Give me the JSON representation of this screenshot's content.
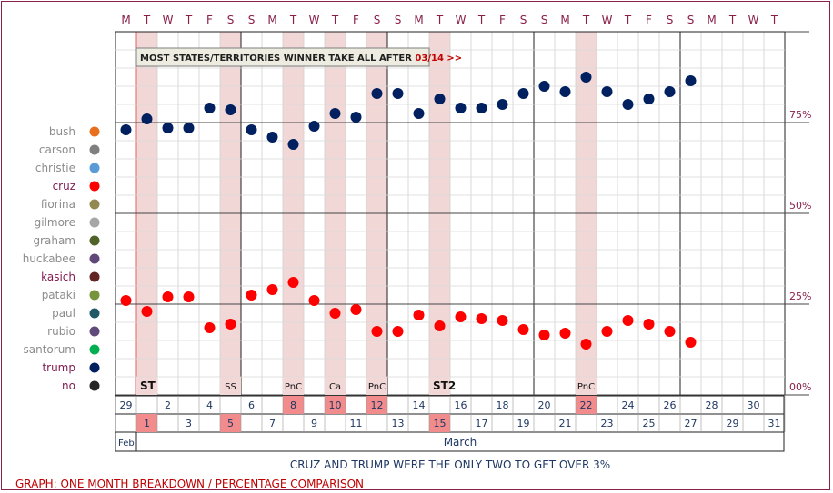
{
  "chart_data": {
    "type": "scatter",
    "title": "GRAPH: ONE MONTH BREAKDOWN / PERCENTAGE COMPARISON",
    "subtitle": "CRUZ AND TRUMP WERE THE ONLY TWO TO GET OVER 3%",
    "annotation": "MOST STATES/TERRITORIES WINNER TAKE ALL AFTER",
    "annotation_date": "03/14 >>",
    "weekday_header": [
      "M",
      "T",
      "W",
      "T",
      "F",
      "S",
      "S",
      "M",
      "T",
      "W",
      "T",
      "F",
      "S",
      "S",
      "M",
      "T",
      "W",
      "T",
      "F",
      "S",
      "S",
      "M",
      "T",
      "W",
      "T",
      "F",
      "S",
      "S",
      "M",
      "T",
      "W",
      "T"
    ],
    "y_ticks": [
      {
        "label": "75%",
        "value": 75
      },
      {
        "label": "50%",
        "value": 50
      },
      {
        "label": "25%",
        "value": 25
      },
      {
        "label": "00%",
        "value": 0
      }
    ],
    "ylim": [
      0,
      100
    ],
    "grid": true,
    "legend_position": "left",
    "x": [
      "Feb 29",
      "Mar 1",
      "Mar 2",
      "Mar 3",
      "Mar 4",
      "Mar 5",
      "Mar 6",
      "Mar 7",
      "Mar 8",
      "Mar 9",
      "Mar 10",
      "Mar 11",
      "Mar 12",
      "Mar 13",
      "Mar 14",
      "Mar 15",
      "Mar 16",
      "Mar 17",
      "Mar 18",
      "Mar 19",
      "Mar 20",
      "Mar 21",
      "Mar 22",
      "Mar 23",
      "Mar 24",
      "Mar 25",
      "Mar 26",
      "Mar 27",
      "Mar 28",
      "Mar 29",
      "Mar 30",
      "Mar 31"
    ],
    "highlight_days": [
      1,
      5,
      8,
      10,
      12,
      15,
      22
    ],
    "event_labels": [
      {
        "day": 1,
        "label": "ST",
        "bold": true
      },
      {
        "day": 5,
        "label": "SS",
        "bold": false
      },
      {
        "day": 8,
        "label": "PnC",
        "bold": false
      },
      {
        "day": 10,
        "label": "Ca",
        "bold": false
      },
      {
        "day": 12,
        "label": "PnC",
        "bold": false
      },
      {
        "day": 15,
        "label": "ST2",
        "bold": true
      },
      {
        "day": 22,
        "label": "PnC",
        "bold": false
      }
    ],
    "date_row_top": [
      "29",
      "2",
      "4",
      "6",
      "8",
      "10",
      "12",
      "14",
      "16",
      "18",
      "20",
      "22",
      "24",
      "26",
      "28",
      "30"
    ],
    "date_row_bottom": [
      "1",
      "3",
      "5",
      "7",
      "9",
      "11",
      "13",
      "15",
      "17",
      "19",
      "21",
      "23",
      "25",
      "27",
      "29",
      "31"
    ],
    "month_labels": [
      {
        "label": "Feb",
        "start": 0,
        "end": 0
      },
      {
        "label": "March",
        "start": 1,
        "end": 31
      }
    ],
    "legend": [
      {
        "name": "bush",
        "color": "#E86F1C",
        "emphasis": false
      },
      {
        "name": "carson",
        "color": "#7F7F7F",
        "emphasis": false
      },
      {
        "name": "christie",
        "color": "#5B9BD5",
        "emphasis": false
      },
      {
        "name": "cruz",
        "color": "#FF0000",
        "emphasis": true
      },
      {
        "name": "fiorina",
        "color": "#938953",
        "emphasis": false
      },
      {
        "name": "gilmore",
        "color": "#A6A6A6",
        "emphasis": false
      },
      {
        "name": "graham",
        "color": "#4F6228",
        "emphasis": false
      },
      {
        "name": "huckabee",
        "color": "#60497A",
        "emphasis": false
      },
      {
        "name": "kasich",
        "color": "#632523",
        "emphasis": true
      },
      {
        "name": "pataki",
        "color": "#77933C",
        "emphasis": false
      },
      {
        "name": "paul",
        "color": "#215967",
        "emphasis": false
      },
      {
        "name": "rubio",
        "color": "#604A7B",
        "emphasis": false
      },
      {
        "name": "santorum",
        "color": "#00B050",
        "emphasis": false
      },
      {
        "name": "trump",
        "color": "#002060",
        "emphasis": true
      },
      {
        "name": "no",
        "color": "#262626",
        "emphasis": true
      }
    ],
    "series": [
      {
        "name": "trump",
        "color": "#002060",
        "values": [
          73,
          76,
          73.5,
          73.5,
          79,
          78.5,
          73,
          71,
          69,
          74,
          77.5,
          76.5,
          83,
          83,
          77.5,
          81.5,
          79,
          79,
          80,
          83,
          85,
          83.5,
          87.5,
          83.5,
          80,
          81.5,
          83.5,
          86.5,
          null,
          null,
          null,
          null
        ]
      },
      {
        "name": "cruz",
        "color": "#FF0000",
        "values": [
          26,
          23,
          27,
          27,
          18.5,
          19.5,
          27.5,
          29,
          31,
          26,
          22.5,
          23.5,
          17.5,
          17.5,
          22,
          19,
          21.5,
          21,
          20.5,
          18,
          16.5,
          17,
          14,
          17.5,
          20.5,
          19.5,
          17.5,
          14.5,
          null,
          null,
          null,
          null
        ]
      }
    ]
  },
  "colors": {
    "frame": "#8a1f4a",
    "header_day": "#8a1f4a",
    "highlight_band": "#f2d7d7",
    "highlight_cell": "#f28b8b",
    "title_red": "#c00000",
    "subtitle_navy": "#1f3864",
    "legend_label": "#8c8c8c",
    "legend_label_emphasis": "#7f1a4f"
  }
}
